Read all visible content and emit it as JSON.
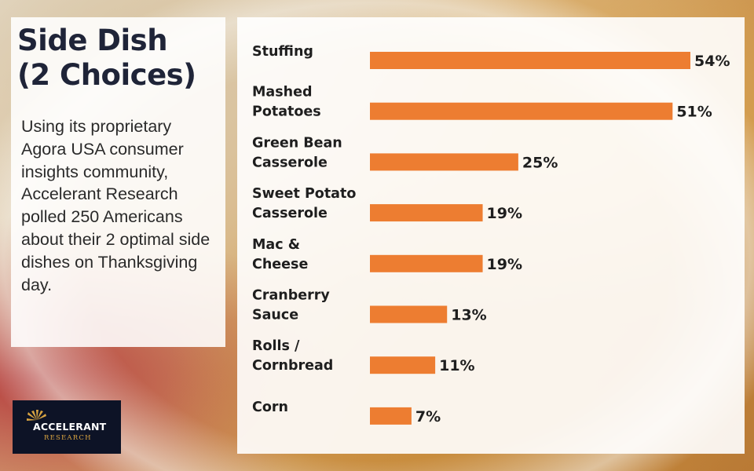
{
  "title": {
    "line1": "Side Dish",
    "line2": "(2 Choices)"
  },
  "description": "Using its proprietary Agora USA consumer insights community, Accelerant Research polled 250 Americans about their 2 optimal side dishes on Thanksgiving day.",
  "logo": {
    "name": "ACCELERANT",
    "sub": "RESEARCH"
  },
  "colors": {
    "bar": "#ed7d31",
    "text": "#1e1e1e",
    "title": "#1f2438",
    "logo_bg": "#0d1326",
    "logo_gold": "#d9a441"
  },
  "chart_data": {
    "type": "bar",
    "orientation": "horizontal",
    "categories": [
      [
        "Stuffing"
      ],
      [
        "Mashed",
        "Potatoes"
      ],
      [
        "Green Bean",
        "Casserole"
      ],
      [
        "Sweet Potato",
        "Casserole"
      ],
      [
        "Mac &",
        "Cheese"
      ],
      [
        "Cranberry",
        "Sauce"
      ],
      [
        "Rolls /",
        "Cornbread"
      ],
      [
        "Corn"
      ]
    ],
    "values": [
      54,
      51,
      25,
      19,
      19,
      13,
      11,
      7
    ],
    "value_labels": [
      "54%",
      "51%",
      "25%",
      "19%",
      "19%",
      "13%",
      "11%",
      "7%"
    ],
    "unit": "%",
    "xlim": [
      0,
      54
    ],
    "grid": false,
    "legend": "none"
  }
}
